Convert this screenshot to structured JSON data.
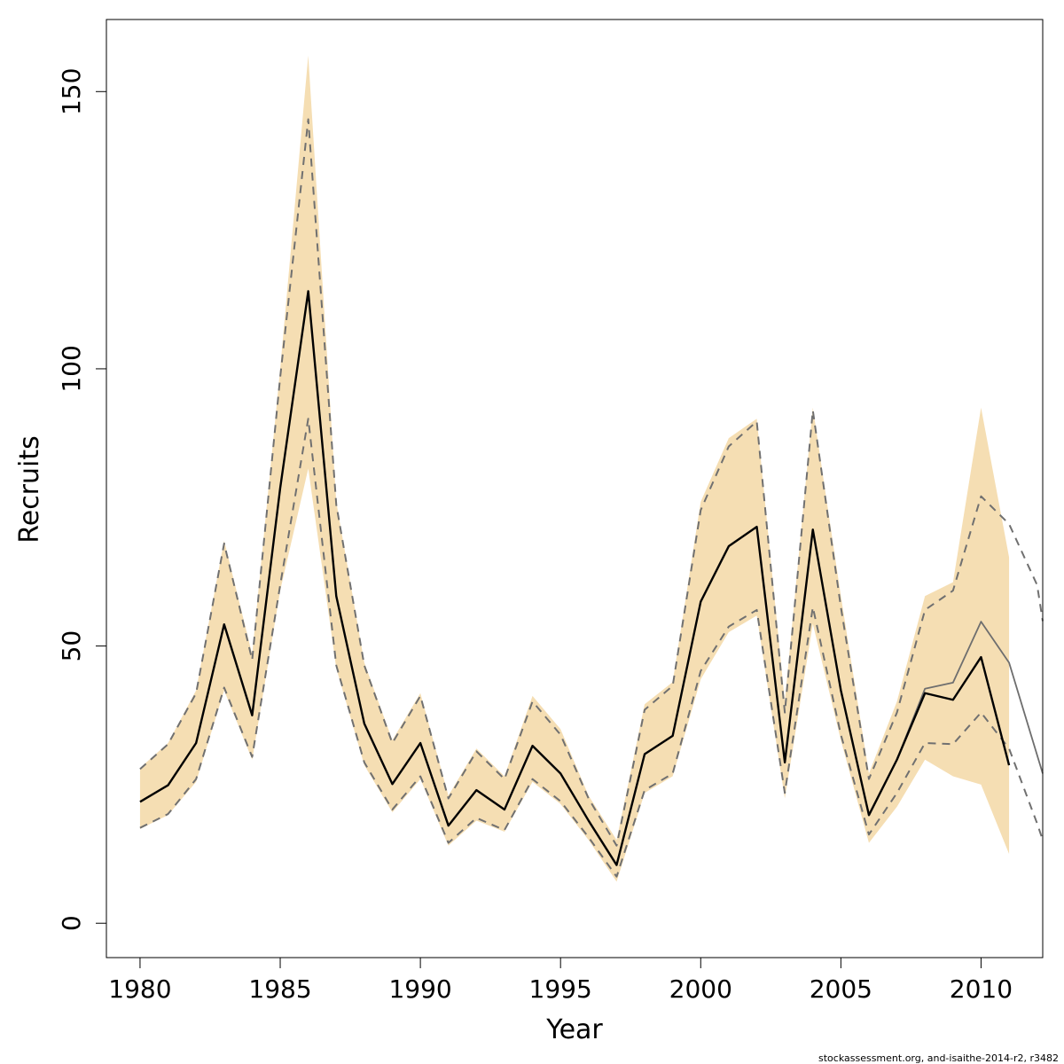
{
  "chart_data": {
    "type": "line",
    "xlabel": "Year",
    "ylabel": "Recruits",
    "xlim": [
      1978.8,
      2012.2
    ],
    "ylim": [
      -6.2,
      163
    ],
    "x_ticks": [
      1980,
      1985,
      1990,
      1995,
      2000,
      2005,
      2010
    ],
    "y_ticks": [
      0,
      50,
      100,
      150
    ],
    "grid": false,
    "legend": "none",
    "footer": "stockassessment.org, and-isaithe-2014-r2, r3482",
    "colors": {
      "band": "#f5deb3",
      "estimate": "#000000",
      "retro_line": "#6e6e6e",
      "retro_dashed": "#707070",
      "axis": "#000000"
    },
    "series": [
      {
        "role": "confidence-band",
        "x": [
          1980,
          1981,
          1982,
          1983,
          1984,
          1985,
          1986,
          1987,
          1988,
          1989,
          1990,
          1991,
          1992,
          1993,
          1994,
          1995,
          1996,
          1997,
          1998,
          1999,
          2000,
          2001,
          2002,
          2003,
          2004,
          2005,
          2006,
          2007,
          2008,
          2009,
          2010,
          2011
        ],
        "upper": [
          28,
          32.5,
          42,
          69,
          48.5,
          100,
          156.5,
          76,
          47,
          33,
          41.5,
          23,
          31.5,
          26.5,
          41,
          35,
          23,
          15,
          39.5,
          43.5,
          76,
          87.5,
          91,
          40,
          93,
          59,
          27,
          40,
          59,
          61.5,
          93,
          66
        ],
        "lower": [
          17,
          19.5,
          25.5,
          42,
          29.5,
          60,
          82,
          46,
          28.5,
          20,
          26,
          14,
          18.5,
          16.5,
          25.5,
          21.5,
          15,
          7.5,
          23.5,
          26.5,
          44,
          52.5,
          55.5,
          22.5,
          54,
          33,
          14.5,
          21,
          29.5,
          26.5,
          25,
          12.5
        ]
      },
      {
        "role": "estimate",
        "x": [
          1980,
          1981,
          1982,
          1983,
          1984,
          1985,
          1986,
          1987,
          1988,
          1989,
          1990,
          1991,
          1992,
          1993,
          1994,
          1995,
          1996,
          1997,
          1998,
          1999,
          2000,
          2001,
          2002,
          2003,
          2004,
          2005,
          2006,
          2007,
          2008,
          2009,
          2010,
          2011
        ],
        "values": [
          21.9,
          24.9,
          32.5,
          53.9,
          37.5,
          78.5,
          114,
          59,
          36,
          25.1,
          32.5,
          17.6,
          24,
          20.5,
          32,
          27,
          18.5,
          10.5,
          30.5,
          33.8,
          58,
          68,
          71.5,
          29,
          71,
          42,
          19.5,
          29.5,
          41.5,
          40.3,
          48,
          28.5
        ]
      },
      {
        "role": "retrospective-estimate",
        "x": [
          2006,
          2007,
          2008,
          2009,
          2010,
          2011,
          2012.2
        ],
        "values": [
          19.5,
          29.5,
          42.3,
          43.4,
          54.4,
          47,
          27
        ]
      },
      {
        "role": "retrospective-upper",
        "x": [
          1980,
          1981,
          1982,
          1983,
          1984,
          1985,
          1986,
          1987,
          1988,
          1989,
          1990,
          1991,
          1992,
          1993,
          1994,
          1995,
          1996,
          1997,
          1998,
          1999,
          2000,
          2001,
          2002,
          2003,
          2004,
          2005,
          2006,
          2007,
          2008,
          2009,
          2010,
          2011,
          2012,
          2012.2
        ],
        "values": [
          27.8,
          32.3,
          41.5,
          68.5,
          47.5,
          98.5,
          145,
          75.5,
          46.5,
          32.5,
          41,
          22.5,
          31,
          26,
          40,
          34,
          22.5,
          14,
          38.5,
          42.8,
          74.5,
          86,
          90.5,
          38,
          92.5,
          57,
          26,
          38,
          56.5,
          60,
          77,
          72,
          61,
          54.5
        ]
      },
      {
        "role": "retrospective-lower",
        "x": [
          1980,
          1981,
          1982,
          1983,
          1984,
          1985,
          1986,
          1987,
          1988,
          1989,
          1990,
          1991,
          1992,
          1993,
          1994,
          1995,
          1996,
          1997,
          1998,
          1999,
          2000,
          2001,
          2002,
          2003,
          2004,
          2005,
          2006,
          2007,
          2008,
          2009,
          2010,
          2011,
          2012,
          2012.2
        ],
        "values": [
          17.2,
          19.7,
          26,
          42.5,
          30,
          61,
          91,
          46.5,
          29,
          20.5,
          26.5,
          14.5,
          19,
          16.8,
          26,
          22,
          15.5,
          8.4,
          24,
          27,
          45.5,
          53.5,
          56.5,
          23.5,
          57,
          34,
          16,
          23.5,
          32.5,
          32.3,
          38,
          31.5,
          18,
          15
        ]
      }
    ]
  }
}
